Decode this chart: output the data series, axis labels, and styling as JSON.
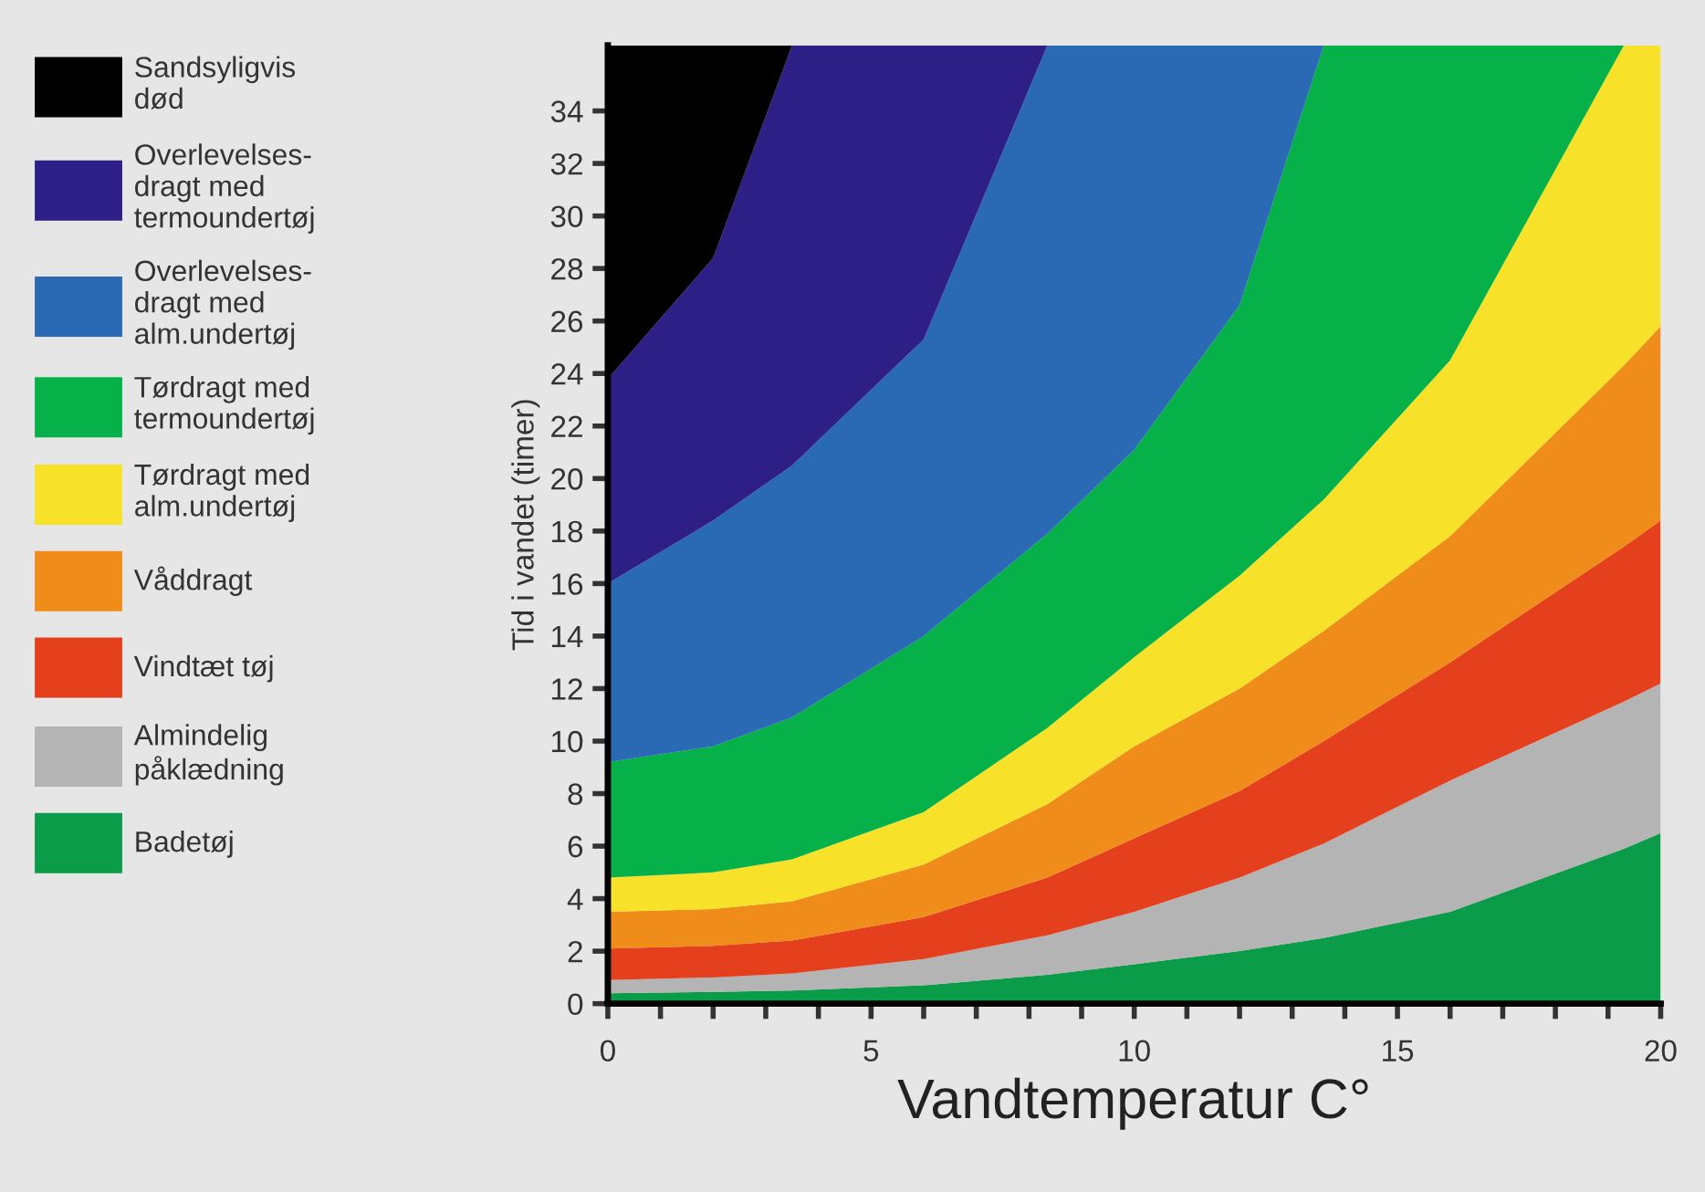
{
  "chart_data": {
    "type": "area",
    "stacked": true,
    "x": [
      0,
      2,
      3.5,
      6,
      8.35,
      10,
      12,
      13.6,
      16,
      19.3,
      20
    ],
    "xlabel": "Vandtemperatur C°",
    "ylabel": "Tid i vandet (timer)",
    "xlim": [
      0,
      20
    ],
    "ylim": [
      0,
      36.5
    ],
    "xticks": [
      0,
      {
        "value": 1,
        "label": null
      },
      {
        "value": 2,
        "label": null
      },
      {
        "value": 3,
        "label": null
      },
      {
        "value": 4,
        "label": null
      },
      5,
      {
        "value": 6,
        "label": null
      },
      {
        "value": 7,
        "label": null
      },
      {
        "value": 8,
        "label": null
      },
      {
        "value": 9,
        "label": null
      },
      10,
      {
        "value": 11,
        "label": null
      },
      {
        "value": 12,
        "label": null
      },
      {
        "value": 13,
        "label": null
      },
      {
        "value": 14,
        "label": null
      },
      15,
      {
        "value": 16,
        "label": null
      },
      {
        "value": 17,
        "label": null
      },
      {
        "value": 18,
        "label": null
      },
      {
        "value": 19,
        "label": null
      },
      20
    ],
    "yticks": [
      0,
      2,
      4,
      6,
      8,
      10,
      12,
      14,
      16,
      18,
      20,
      22,
      24,
      26,
      28,
      30,
      32,
      34
    ],
    "grid": false,
    "legend": "left",
    "series": [
      {
        "name": "Badetøj",
        "color": "#0a9c48",
        "values": [
          0.4,
          0.45,
          0.5,
          0.7,
          1.1,
          1.5,
          2.0,
          2.5,
          3.5,
          5.9,
          6.5
        ]
      },
      {
        "name": "Almindelig\npåklædning",
        "color": "#b4b4b4",
        "values": [
          0.5,
          0.55,
          0.65,
          1.0,
          1.5,
          2.0,
          2.8,
          3.6,
          5.0,
          5.6,
          5.7
        ]
      },
      {
        "name": "Vindtæt tøj",
        "color": "#e4401e",
        "values": [
          1.2,
          1.2,
          1.25,
          1.6,
          2.2,
          2.8,
          3.3,
          3.9,
          4.5,
          5.9,
          6.2
        ]
      },
      {
        "name": "Våddragt",
        "color": "#f08c1a",
        "values": [
          1.4,
          1.4,
          1.5,
          2.0,
          2.8,
          3.5,
          3.9,
          4.2,
          4.8,
          6.9,
          7.4
        ]
      },
      {
        "name": "Tørdragt med\nalm.undertøj",
        "color": "#f7e229",
        "values": [
          1.3,
          1.4,
          1.6,
          2.0,
          2.9,
          3.4,
          4.3,
          5.0,
          6.7,
          12.2,
          10.7
        ]
      },
      {
        "name": "Tørdragt med\ntermoundertøj",
        "color": "#06b14a",
        "values": [
          4.4,
          4.8,
          5.4,
          6.7,
          7.4,
          7.9,
          10.3,
          17.3,
          12.0,
          0,
          0
        ]
      },
      {
        "name": "Overlevelses-\ndragt med\nalm.undertøj",
        "color": "#2a6ab5",
        "values": [
          6.8,
          8.6,
          9.6,
          11.3,
          18.6,
          15.4,
          9.9,
          0,
          0,
          0,
          0
        ]
      },
      {
        "name": "Overlevelses-\ndragt med\ntermoundertøj",
        "color": "#2e1f86",
        "values": [
          7.8,
          10.0,
          16.0,
          11.2,
          0,
          0,
          0,
          0,
          0,
          0,
          0
        ]
      },
      {
        "name": "Sandsyligvis\ndød",
        "color": "#000000",
        "values": [
          12.7,
          8.1,
          0,
          0,
          0,
          0,
          0,
          0,
          0,
          0,
          0
        ]
      }
    ]
  }
}
